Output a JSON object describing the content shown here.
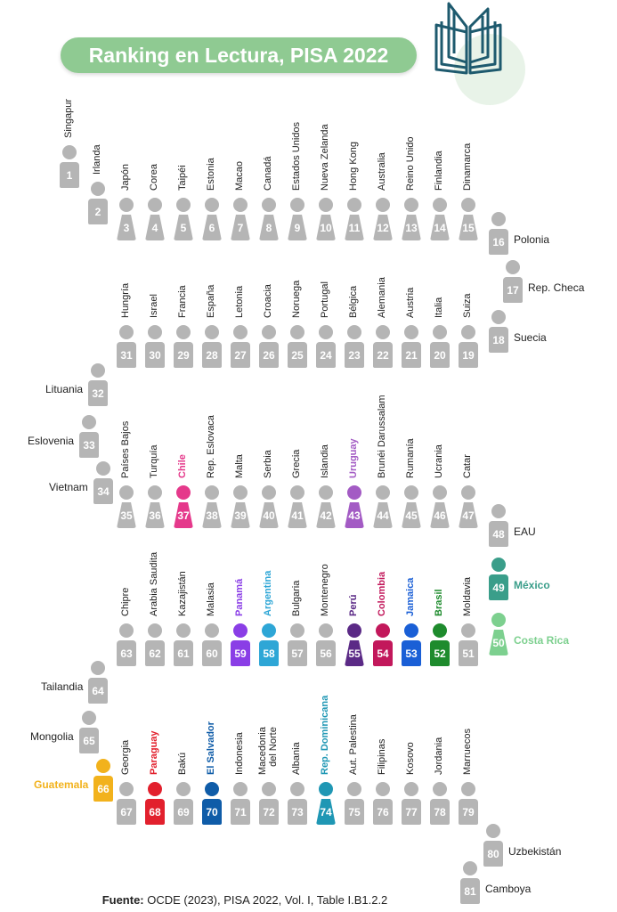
{
  "title": "Ranking en Lectura, PISA 2022",
  "source_prefix": "Fuente:",
  "source_text": " OCDE (2023), PISA 2022, Vol. I, Table I.B1.2.2",
  "colors": {
    "gray": "#b5b5b5",
    "gray_text": "#ffffff",
    "title_bg": "#8fca92",
    "Chile": "#e5398b",
    "Uruguay": "#a35bc4",
    "Panamá": "#8a3ee6",
    "Argentina": "#2ea6d6",
    "Perú": "#5b2a86",
    "Colombia": "#c2185b",
    "Jamaica": "#1a5fd6",
    "Brasil": "#1e8b2d",
    "México": "#3a9e8a",
    "Costa Rica": "#7dd08f",
    "Paraguay": "#e2202d",
    "El Salvador": "#0f5ca8",
    "Rep. Dominicana": "#1f97b4",
    "Guatemala": "#f2b21c"
  },
  "ranking": [
    {
      "rank": 1,
      "country": "Singapur",
      "sex": "m"
    },
    {
      "rank": 2,
      "country": "Irlanda",
      "sex": "m"
    },
    {
      "rank": 3,
      "country": "Japón",
      "sex": "f"
    },
    {
      "rank": 4,
      "country": "Corea",
      "sex": "f"
    },
    {
      "rank": 5,
      "country": "Taipéi",
      "sex": "f"
    },
    {
      "rank": 6,
      "country": "Estonia",
      "sex": "f"
    },
    {
      "rank": 7,
      "country": "Macao",
      "sex": "f"
    },
    {
      "rank": 8,
      "country": "Canadá",
      "sex": "f"
    },
    {
      "rank": 9,
      "country": "Estados Unidos",
      "sex": "f"
    },
    {
      "rank": 10,
      "country": "Nueva Zelanda",
      "sex": "f"
    },
    {
      "rank": 11,
      "country": "Hong Kong",
      "sex": "f"
    },
    {
      "rank": 12,
      "country": "Australia",
      "sex": "f"
    },
    {
      "rank": 13,
      "country": "Reino Unido",
      "sex": "f"
    },
    {
      "rank": 14,
      "country": "Finlandia",
      "sex": "f"
    },
    {
      "rank": 15,
      "country": "Dinamarca",
      "sex": "f"
    },
    {
      "rank": 16,
      "country": "Polonia",
      "sex": "m"
    },
    {
      "rank": 17,
      "country": "Rep. Checa",
      "sex": "m"
    },
    {
      "rank": 18,
      "country": "Suecia",
      "sex": "m"
    },
    {
      "rank": 19,
      "country": "Suiza",
      "sex": "m"
    },
    {
      "rank": 20,
      "country": "Italia",
      "sex": "m"
    },
    {
      "rank": 21,
      "country": "Austria",
      "sex": "m"
    },
    {
      "rank": 22,
      "country": "Alemania",
      "sex": "m"
    },
    {
      "rank": 23,
      "country": "Bélgica",
      "sex": "m"
    },
    {
      "rank": 24,
      "country": "Portugal",
      "sex": "m"
    },
    {
      "rank": 25,
      "country": "Noruega",
      "sex": "m"
    },
    {
      "rank": 26,
      "country": "Croacia",
      "sex": "m"
    },
    {
      "rank": 27,
      "country": "Letonia",
      "sex": "m"
    },
    {
      "rank": 28,
      "country": "España",
      "sex": "m"
    },
    {
      "rank": 29,
      "country": "Francia",
      "sex": "m"
    },
    {
      "rank": 30,
      "country": "Israel",
      "sex": "m"
    },
    {
      "rank": 31,
      "country": "Hungría",
      "sex": "m"
    },
    {
      "rank": 32,
      "country": "Lituania",
      "sex": "m"
    },
    {
      "rank": 33,
      "country": "Eslovenia",
      "sex": "m"
    },
    {
      "rank": 34,
      "country": "Vietnam",
      "sex": "m"
    },
    {
      "rank": 35,
      "country": "Países Bajos",
      "sex": "f"
    },
    {
      "rank": 36,
      "country": "Turquía",
      "sex": "f"
    },
    {
      "rank": 37,
      "country": "Chile",
      "sex": "f"
    },
    {
      "rank": 38,
      "country": "Rep. Eslovaca",
      "sex": "f"
    },
    {
      "rank": 39,
      "country": "Malta",
      "sex": "f"
    },
    {
      "rank": 40,
      "country": "Serbia",
      "sex": "f"
    },
    {
      "rank": 41,
      "country": "Grecia",
      "sex": "f"
    },
    {
      "rank": 42,
      "country": "Islandia",
      "sex": "f"
    },
    {
      "rank": 43,
      "country": "Uruguay",
      "sex": "f"
    },
    {
      "rank": 44,
      "country": "Brunéi Darussalam",
      "sex": "f"
    },
    {
      "rank": 45,
      "country": "Rumanía",
      "sex": "f"
    },
    {
      "rank": 46,
      "country": "Ucrania",
      "sex": "f"
    },
    {
      "rank": 47,
      "country": "Catar",
      "sex": "f"
    },
    {
      "rank": 48,
      "country": "EAU",
      "sex": "m"
    },
    {
      "rank": 49,
      "country": "México",
      "sex": "m"
    },
    {
      "rank": 50,
      "country": "Costa Rica",
      "sex": "f"
    },
    {
      "rank": 51,
      "country": "Moldavia",
      "sex": "m"
    },
    {
      "rank": 52,
      "country": "Brasil",
      "sex": "m"
    },
    {
      "rank": 53,
      "country": "Jamaica",
      "sex": "m"
    },
    {
      "rank": 54,
      "country": "Colombia",
      "sex": "m"
    },
    {
      "rank": 55,
      "country": "Perú",
      "sex": "f"
    },
    {
      "rank": 56,
      "country": "Montenegro",
      "sex": "m"
    },
    {
      "rank": 57,
      "country": "Bulgaria",
      "sex": "m"
    },
    {
      "rank": 58,
      "country": "Argentina",
      "sex": "m"
    },
    {
      "rank": 59,
      "country": "Panamá",
      "sex": "m"
    },
    {
      "rank": 60,
      "country": "Malasia",
      "sex": "m"
    },
    {
      "rank": 61,
      "country": "Kazajistán",
      "sex": "m"
    },
    {
      "rank": 62,
      "country": "Arabia Saudita",
      "sex": "m"
    },
    {
      "rank": 63,
      "country": "Chipre",
      "sex": "m"
    },
    {
      "rank": 64,
      "country": "Tailandia",
      "sex": "m"
    },
    {
      "rank": 65,
      "country": "Mongolia",
      "sex": "m"
    },
    {
      "rank": 66,
      "country": "Guatemala",
      "sex": "m"
    },
    {
      "rank": 67,
      "country": "Georgia",
      "sex": "m"
    },
    {
      "rank": 68,
      "country": "Paraguay",
      "sex": "m"
    },
    {
      "rank": 69,
      "country": "Bakú",
      "sex": "m"
    },
    {
      "rank": 70,
      "country": "El Salvador",
      "sex": "m"
    },
    {
      "rank": 71,
      "country": "Indonesia",
      "sex": "m"
    },
    {
      "rank": 72,
      "country": "Macedonia del Norte",
      "sex": "m"
    },
    {
      "rank": 73,
      "country": "Albania",
      "sex": "m"
    },
    {
      "rank": 74,
      "country": "Rep. Dominicana",
      "sex": "f"
    },
    {
      "rank": 75,
      "country": "Aut. Palestina",
      "sex": "m"
    },
    {
      "rank": 76,
      "country": "Filipinas",
      "sex": "m"
    },
    {
      "rank": 77,
      "country": "Kosovo",
      "sex": "m"
    },
    {
      "rank": 78,
      "country": "Jordania",
      "sex": "m"
    },
    {
      "rank": 79,
      "country": "Marruecos",
      "sex": "m"
    },
    {
      "rank": 80,
      "country": "Uzbekistán",
      "sex": "m"
    },
    {
      "rank": 81,
      "country": "Camboya",
      "sex": "m"
    }
  ]
}
